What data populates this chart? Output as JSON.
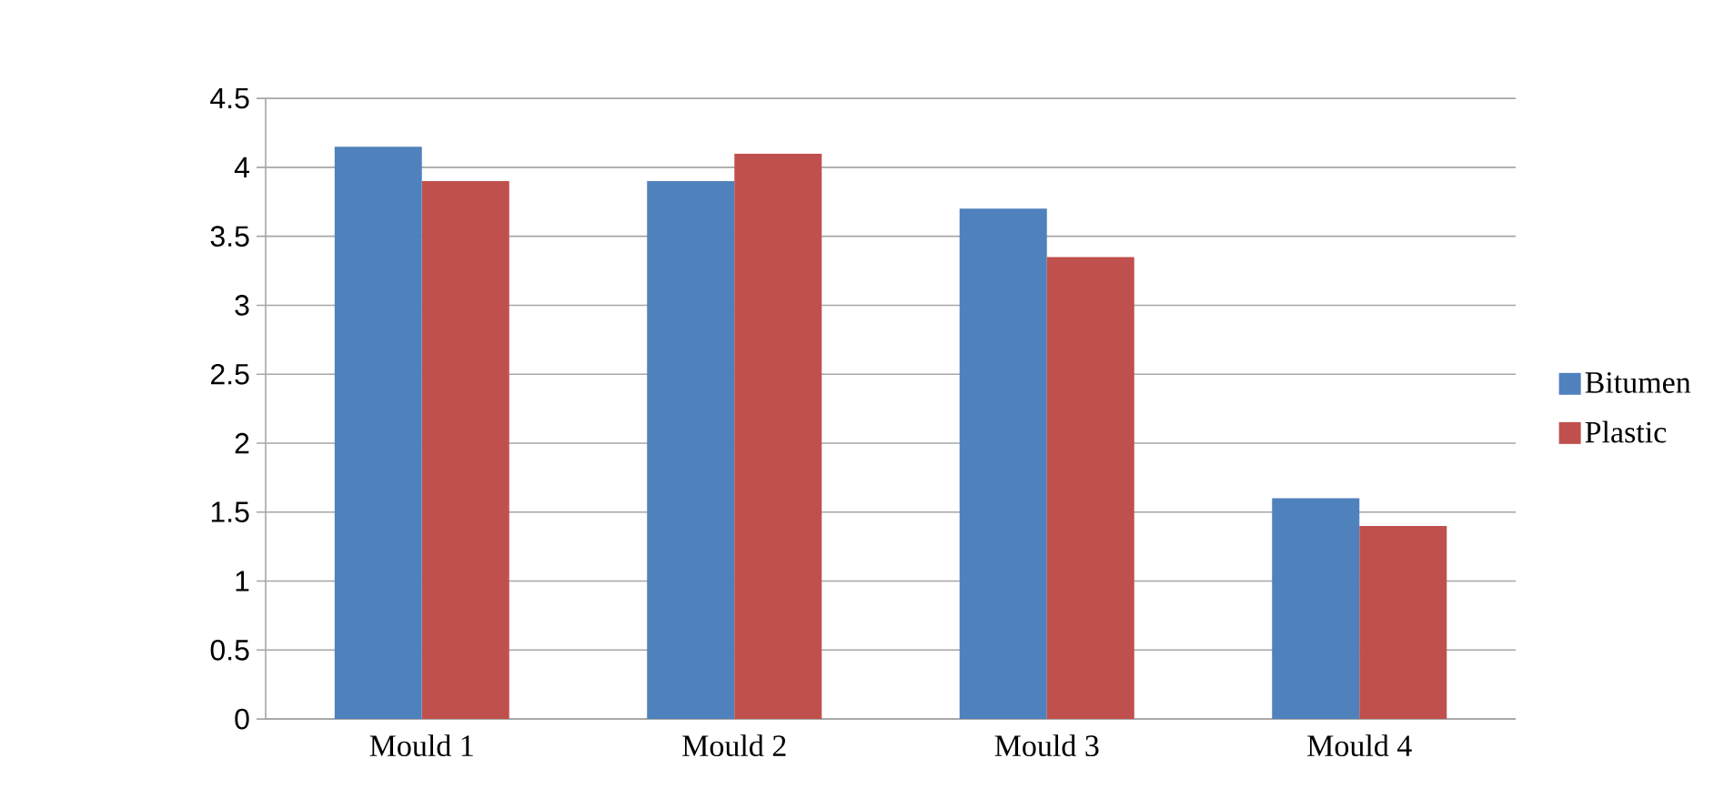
{
  "chart_data": {
    "type": "bar",
    "categories": [
      "Mould 1",
      "Mould 2",
      "Mould 3",
      "Mould 4"
    ],
    "series": [
      {
        "name": "Bitumen",
        "color": "#4f81bd",
        "values": [
          4.15,
          3.9,
          3.7,
          1.6
        ]
      },
      {
        "name": "Plastic",
        "color": "#c0504d",
        "values": [
          3.9,
          4.1,
          3.35,
          1.4
        ]
      }
    ],
    "ylim": [
      0,
      4.5
    ],
    "yticks": [
      0,
      0.5,
      1,
      1.5,
      2,
      2.5,
      3,
      3.5,
      4,
      4.5
    ],
    "grid": "y",
    "legend": "right"
  }
}
